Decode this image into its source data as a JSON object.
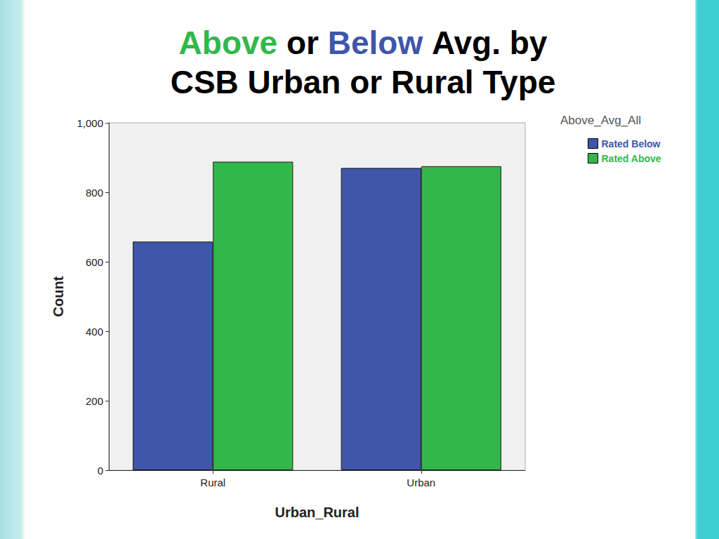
{
  "chart_data": {
    "type": "bar",
    "title": "Above or Below Avg. by CSB Urban or Rural Type",
    "categories": [
      "Rural",
      "Urban"
    ],
    "series": [
      {
        "name": "Rated Below",
        "color": "#3f56ab",
        "values": [
          658,
          870
        ]
      },
      {
        "name": "Rated Above",
        "color": "#32b84a",
        "values": [
          888,
          875
        ]
      }
    ],
    "x_label": "Urban_Rural",
    "y_label": "Count",
    "legend_title": "Above_Avg_All",
    "legend": "top-right",
    "ylim": [
      0,
      1000
    ],
    "yticks": [
      0,
      200,
      400,
      600,
      800,
      {
        "value": 1000,
        "label": "1,000"
      }
    ],
    "grid": false
  }
}
